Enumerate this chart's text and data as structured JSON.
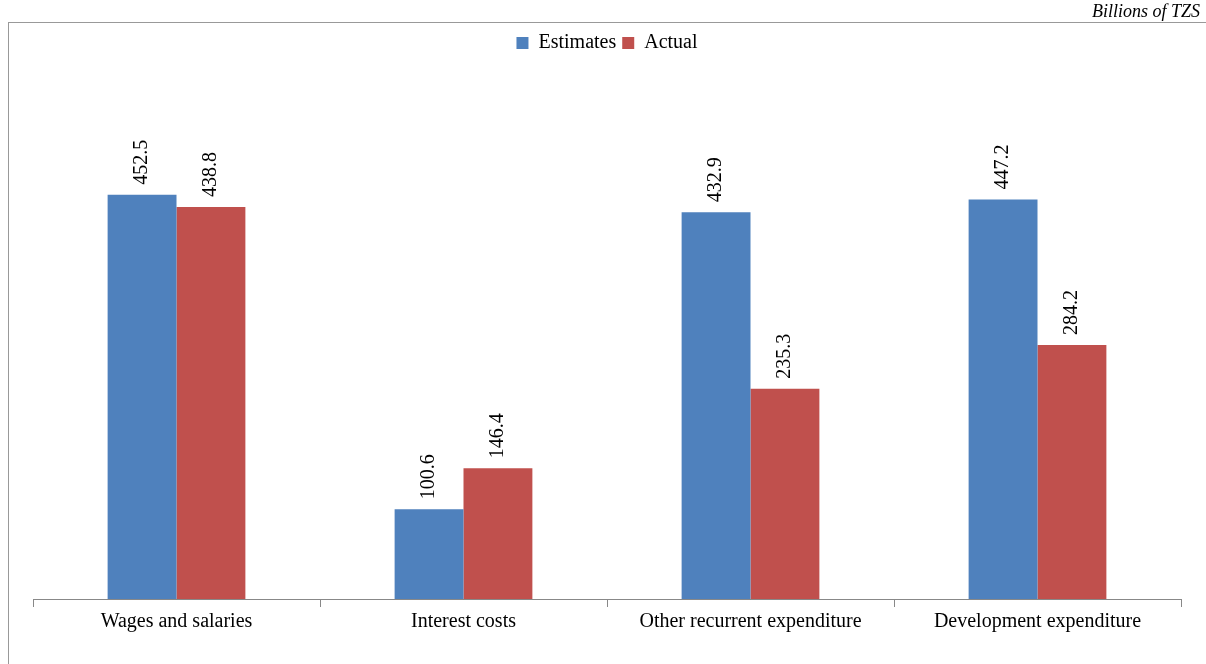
{
  "chart_data": {
    "type": "bar",
    "subtitle": "Billions of TZS",
    "categories": [
      "Wages and salaries",
      "Interest costs",
      "Other recurrent expenditure",
      "Development expenditure"
    ],
    "series": [
      {
        "name": "Estimates",
        "color": "#4f81bd",
        "values": [
          452.5,
          100.6,
          432.9,
          447.2
        ]
      },
      {
        "name": "Actual",
        "color": "#c0504d",
        "values": [
          438.8,
          146.4,
          235.3,
          284.2
        ]
      }
    ],
    "tick_labels": "x",
    "data_labels": true,
    "legend": "top",
    "grid": false
  }
}
